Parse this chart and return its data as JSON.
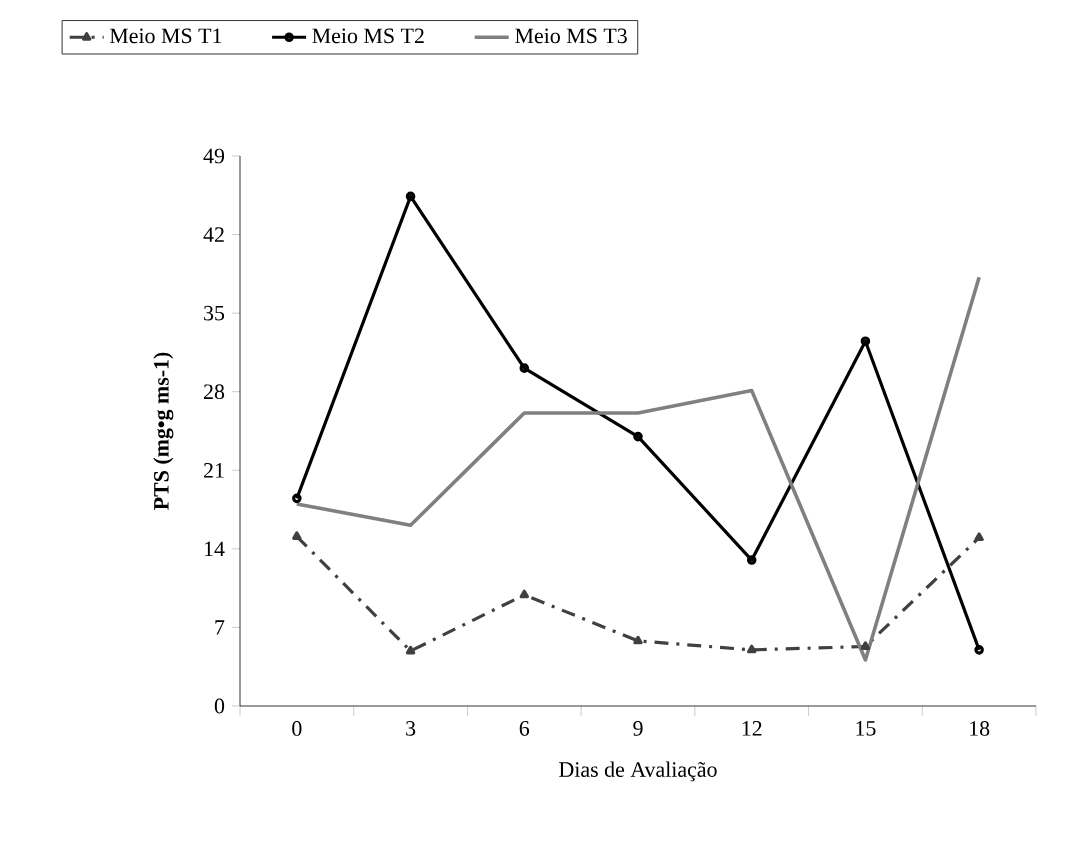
{
  "chart_data": {
    "type": "line",
    "xlabel": "Dias de Avaliação",
    "ylabel": "PTS (mg•g ms-1)",
    "categories": [
      "0",
      "3",
      "6",
      "9",
      "12",
      "15",
      "18"
    ],
    "series": [
      {
        "name": "Meio MS T1",
        "color": "#404040",
        "marker": "triangle",
        "line_style": "dashdot",
        "values": [
          15.1,
          4.9,
          9.9,
          5.8,
          5.0,
          5.3,
          15.0
        ]
      },
      {
        "name": "Meio MS T2",
        "color": "#000000",
        "marker": "circle",
        "line_style": "solid",
        "values": [
          18.5,
          45.4,
          30.1,
          24.0,
          13.0,
          32.5,
          5.0
        ]
      },
      {
        "name": "Meio MS T3",
        "color": "#808080",
        "marker": "none",
        "line_style": "solid",
        "values": [
          18.0,
          16.1,
          26.1,
          26.1,
          28.1,
          4.1,
          38.2
        ]
      }
    ],
    "ylim": [
      0,
      49
    ],
    "yticks": [
      0,
      7,
      14,
      21,
      28,
      35,
      42,
      49
    ],
    "grid": false,
    "legend": "top"
  }
}
